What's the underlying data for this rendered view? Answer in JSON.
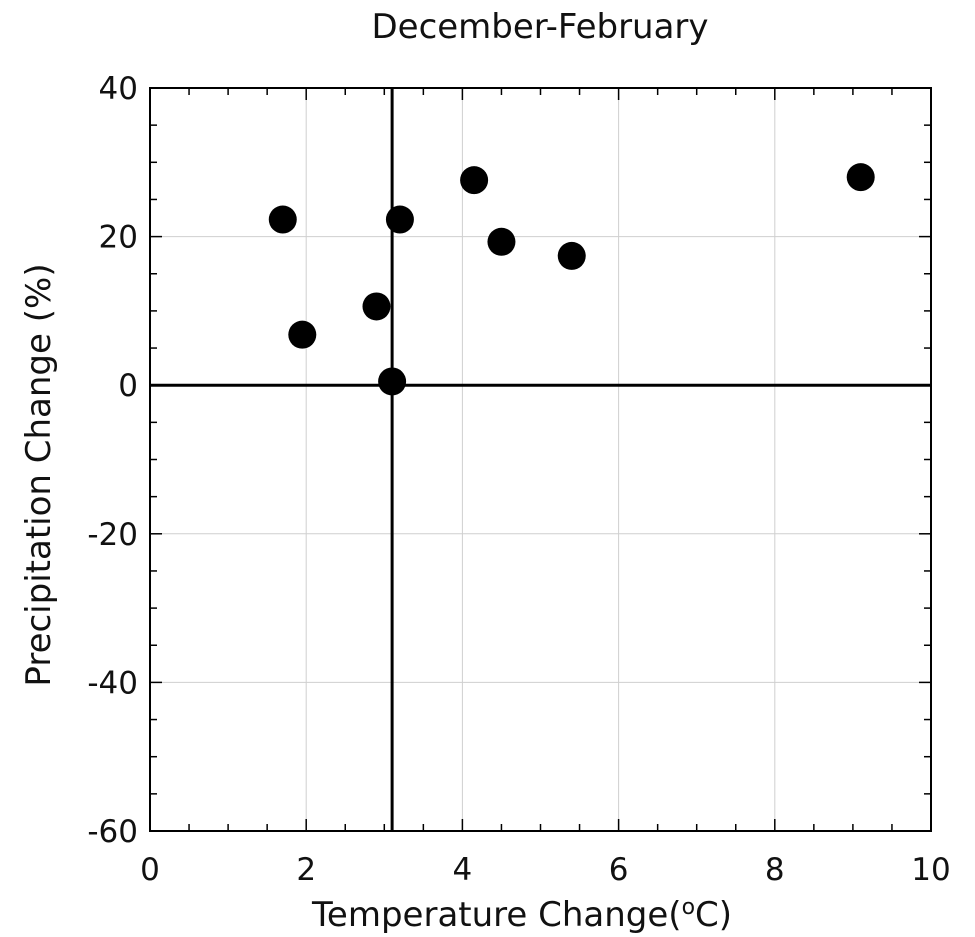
{
  "chart_data": {
    "type": "scatter",
    "title": "December-February",
    "xlabel": "Temperature Change(",
    "xlabel_superscript": "o",
    "xlabel_suffix": "C)",
    "ylabel": "Precipitation Change (%)",
    "xlim": [
      0,
      10
    ],
    "ylim": [
      -60,
      40
    ],
    "x_ticks": [
      0,
      2,
      4,
      6,
      8,
      10
    ],
    "y_ticks": [
      -60,
      -40,
      -20,
      0,
      20,
      40
    ],
    "x_tick_labels": [
      "0",
      "2",
      "4",
      "6",
      "8",
      "10"
    ],
    "y_tick_labels": [
      "-60",
      "-40",
      "-20",
      "0",
      "20",
      "40"
    ],
    "x_minor_step": 0.5,
    "y_minor_step": 5,
    "grid": true,
    "reference_lines": {
      "x": 3.1,
      "y": 0
    },
    "marker_color": "#000000",
    "points": [
      {
        "x": 1.7,
        "y": 22.3
      },
      {
        "x": 1.95,
        "y": 6.8
      },
      {
        "x": 2.9,
        "y": 10.6
      },
      {
        "x": 3.1,
        "y": 0.5
      },
      {
        "x": 3.2,
        "y": 22.3
      },
      {
        "x": 4.15,
        "y": 27.6
      },
      {
        "x": 4.5,
        "y": 19.3
      },
      {
        "x": 5.4,
        "y": 17.4
      },
      {
        "x": 9.1,
        "y": 28.0
      }
    ]
  }
}
